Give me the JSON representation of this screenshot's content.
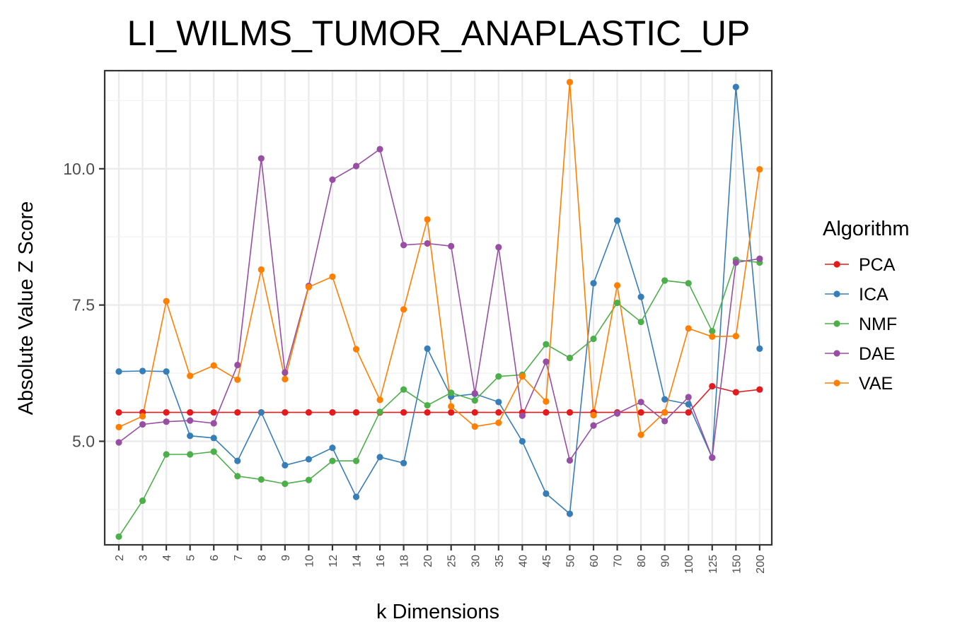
{
  "chart_data": {
    "type": "line",
    "title": "LI_WILMS_TUMOR_ANAPLASTIC_UP",
    "xlabel": "k Dimensions",
    "ylabel": "Absolute Value Z Score",
    "categories": [
      "2",
      "3",
      "4",
      "5",
      "6",
      "7",
      "8",
      "9",
      "10",
      "12",
      "14",
      "16",
      "18",
      "20",
      "25",
      "30",
      "35",
      "40",
      "45",
      "50",
      "60",
      "70",
      "80",
      "90",
      "100",
      "125",
      "150",
      "200"
    ],
    "yticks": [
      5.0,
      7.5,
      10.0
    ],
    "ytick_labels": [
      "5.0",
      "7.5",
      "10.0"
    ],
    "ylim": [
      3.1,
      11.8
    ],
    "grid": true,
    "legend": {
      "title": "Algorithm",
      "position": "right"
    },
    "series": [
      {
        "name": "PCA",
        "color": "#E41A1C",
        "values": [
          5.53,
          5.53,
          5.53,
          5.53,
          5.53,
          5.53,
          5.53,
          5.53,
          5.53,
          5.53,
          5.53,
          5.53,
          5.53,
          5.53,
          5.53,
          5.53,
          5.53,
          5.53,
          5.53,
          5.53,
          5.53,
          5.53,
          5.53,
          5.53,
          5.53,
          6.01,
          5.9,
          5.95
        ]
      },
      {
        "name": "ICA",
        "color": "#377EB8",
        "values": [
          6.28,
          6.29,
          6.28,
          5.1,
          5.06,
          4.64,
          5.53,
          4.56,
          4.67,
          4.88,
          3.98,
          4.71,
          4.6,
          6.7,
          5.82,
          5.87,
          5.72,
          5.0,
          4.04,
          3.67,
          7.9,
          9.05,
          7.65,
          5.77,
          5.68,
          4.7,
          11.5,
          6.7
        ]
      },
      {
        "name": "NMF",
        "color": "#4DAF4A",
        "values": [
          3.25,
          3.91,
          4.76,
          4.76,
          4.81,
          4.36,
          4.3,
          4.22,
          4.29,
          4.64,
          4.64,
          5.54,
          5.95,
          5.66,
          5.89,
          5.75,
          6.19,
          6.22,
          6.78,
          6.53,
          6.88,
          7.54,
          7.19,
          7.95,
          7.9,
          7.02,
          8.33,
          8.28
        ]
      },
      {
        "name": "DAE",
        "color": "#984EA3",
        "values": [
          4.98,
          5.31,
          5.36,
          5.38,
          5.33,
          6.4,
          10.19,
          6.26,
          7.85,
          9.8,
          10.05,
          10.36,
          8.6,
          8.63,
          8.58,
          5.88,
          8.56,
          5.47,
          6.46,
          4.65,
          5.29,
          5.51,
          5.72,
          5.37,
          5.81,
          4.7,
          8.28,
          8.35
        ]
      },
      {
        "name": "VAE",
        "color": "#FF7F00",
        "values": [
          5.26,
          5.46,
          7.57,
          6.2,
          6.39,
          6.13,
          8.15,
          6.14,
          7.83,
          8.02,
          6.69,
          5.76,
          7.42,
          9.07,
          5.64,
          5.27,
          5.34,
          6.19,
          5.73,
          11.59,
          5.48,
          7.86,
          5.12,
          5.53,
          7.07,
          6.92,
          6.93,
          9.99
        ]
      }
    ]
  }
}
